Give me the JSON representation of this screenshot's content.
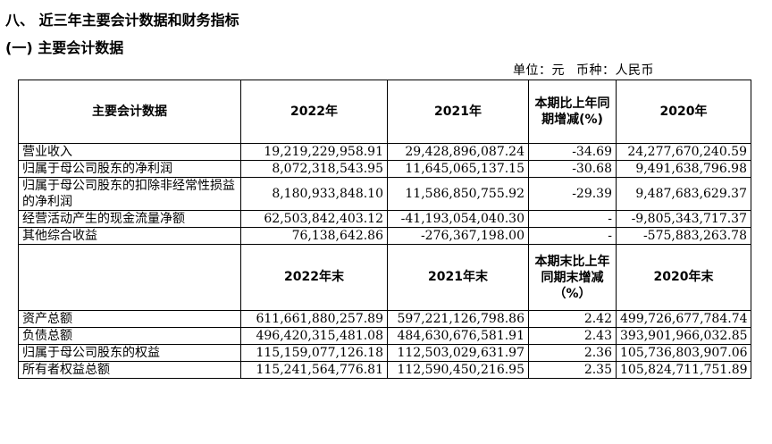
{
  "section_title": "八、 近三年主要会计数据和财务指标",
  "subsection_title": "(一) 主要会计数据",
  "unit_line": {
    "unit": "单位：元",
    "currency": "币种：人民币"
  },
  "table1": {
    "headers": [
      "主要会计数据",
      "2022年",
      "2021年",
      "本期比上年同期增减(%)",
      "2020年"
    ],
    "rows": [
      [
        "营业收入",
        "19,219,229,958.91",
        "29,428,896,087.24",
        "-34.69",
        "24,277,670,240.59"
      ],
      [
        "归属于母公司股东的净利润",
        "8,072,318,543.95",
        "11,645,065,137.15",
        "-30.68",
        "9,491,638,796.98"
      ],
      [
        "归属于母公司股东的扣除非经常性损益的净利润",
        "8,180,933,848.10",
        "11,586,850,755.92",
        "-29.39",
        "9,487,683,629.37"
      ],
      [
        "经营活动产生的现金流量净额",
        "62,503,842,403.12",
        "-41,193,054,040.30",
        "-",
        "-9,805,343,717.37"
      ],
      [
        "其他综合收益",
        "76,138,642.86",
        "-276,367,198.00",
        "-",
        "-575,883,263.78"
      ]
    ]
  },
  "table2": {
    "headers": [
      "",
      "2022年末",
      "2021年末",
      "本期末比上年同期末增减（%）",
      "2020年末"
    ],
    "rows": [
      [
        "资产总额",
        "611,661,880,257.89",
        "597,221,126,798.86",
        "2.42",
        "499,726,677,784.74"
      ],
      [
        "负债总额",
        "496,420,315,481.08",
        "484,630,676,581.91",
        "2.43",
        "393,901,966,032.85"
      ],
      [
        "归属于母公司股东的权益",
        "115,159,077,126.18",
        "112,503,029,631.97",
        "2.36",
        "105,736,803,907.06"
      ],
      [
        "所有者权益总额",
        "115,241,564,776.81",
        "112,590,450,216.95",
        "2.35",
        "105,824,711,751.89"
      ]
    ]
  }
}
